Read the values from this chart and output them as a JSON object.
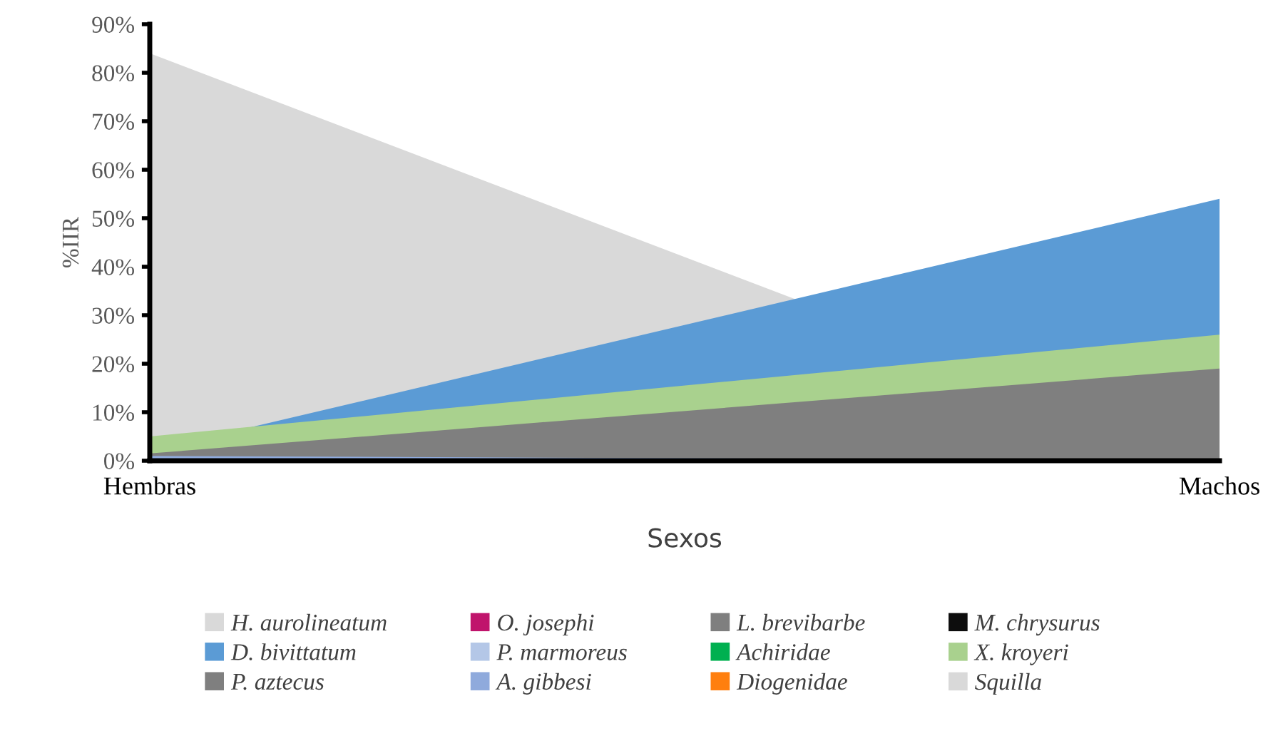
{
  "chart_data": {
    "type": "area",
    "ylabel": "%IIR",
    "xlabel": "Sexos",
    "categories": [
      "Hembras",
      "Machos"
    ],
    "series": [
      {
        "name": "H. aurolineatum",
        "color": "#d9d9d9",
        "values": [
          84,
          0
        ]
      },
      {
        "name": "O. josephi",
        "color": "#c0146c",
        "values": [
          null,
          null
        ]
      },
      {
        "name": "L. brevibarbe",
        "color": "#7f7f7f",
        "values": [
          null,
          null
        ]
      },
      {
        "name": "M. chrysurus",
        "color": "#0d0d0d",
        "values": [
          null,
          null
        ]
      },
      {
        "name": "D. bivittatum",
        "color": "#5b9bd5",
        "values": [
          2,
          54
        ]
      },
      {
        "name": "P. marmoreus",
        "color": "#b4c7e7",
        "values": [
          null,
          null
        ]
      },
      {
        "name": "Achiridae",
        "color": "#00b050",
        "values": [
          null,
          null
        ]
      },
      {
        "name": "X. kroyeri",
        "color": "#a9d18e",
        "values": [
          5,
          26
        ]
      },
      {
        "name": "P. aztecus",
        "color": "#7f7f7f",
        "values": [
          1.5,
          19
        ]
      },
      {
        "name": "A. gibbesi",
        "color": "#8faadc",
        "values": [
          1,
          0
        ]
      },
      {
        "name": "Diogenidae",
        "color": "#ff7f0e",
        "values": [
          null,
          null
        ]
      },
      {
        "name": "Squilla",
        "color": "#d9d9d9",
        "values": [
          null,
          null
        ]
      }
    ],
    "ylim": [
      0,
      90
    ],
    "yticks": [
      {
        "value": 0,
        "label": "0%"
      },
      {
        "value": 10,
        "label": "10%"
      },
      {
        "value": 20,
        "label": "20%"
      },
      {
        "value": 30,
        "label": "30%"
      },
      {
        "value": 40,
        "label": "40%"
      },
      {
        "value": 50,
        "label": "50%"
      },
      {
        "value": 60,
        "label": "60%"
      },
      {
        "value": 70,
        "label": "70%"
      },
      {
        "value": 80,
        "label": "80%"
      },
      {
        "value": 90,
        "label": "90%"
      }
    ],
    "grid": false,
    "legend": "bottom"
  }
}
